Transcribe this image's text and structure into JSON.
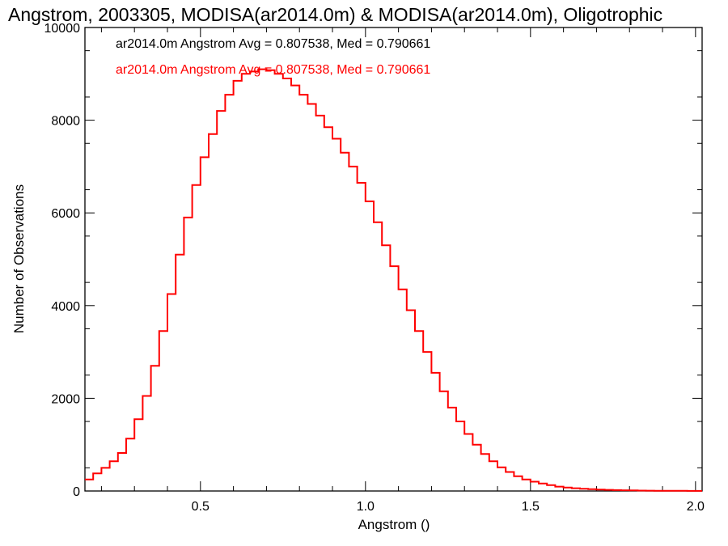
{
  "chart_data": {
    "type": "step",
    "title": "Angstrom, 2003305, MODISA(ar2014.0m) & MODISA(ar2014.0m), Oligotrophic",
    "xlabel": "Angstrom ()",
    "ylabel": "Number of Observations",
    "xlim": [
      0.15,
      2.02
    ],
    "ylim": [
      0,
      10000
    ],
    "x_ticks": [
      {
        "value": 0.5,
        "label": "0.5"
      },
      {
        "value": 1.0,
        "label": "1.0"
      },
      {
        "value": 1.5,
        "label": "1.5"
      },
      {
        "value": 2.0,
        "label": "2.0"
      }
    ],
    "y_ticks": [
      {
        "value": 0,
        "label": "0"
      },
      {
        "value": 2000,
        "label": "2000"
      },
      {
        "value": 4000,
        "label": "4000"
      },
      {
        "value": 6000,
        "label": "6000"
      },
      {
        "value": 8000,
        "label": "8000"
      },
      {
        "value": 10000,
        "label": "10000"
      }
    ],
    "legend_placement": "top-left",
    "legend": [
      {
        "text": "ar2014.0m Angstrom Avg = 0.807538, Med = 0.790661",
        "color": "#000000"
      },
      {
        "text": "ar2014.0m Angstrom Avg = 0.807538, Med = 0.790661",
        "color": "#ff0000"
      }
    ],
    "series": [
      {
        "color": "#ff0000",
        "bin_width": 0.025,
        "x": [
          0.15,
          0.175,
          0.2,
          0.225,
          0.25,
          0.275,
          0.3,
          0.325,
          0.35,
          0.375,
          0.4,
          0.425,
          0.45,
          0.475,
          0.5,
          0.525,
          0.55,
          0.575,
          0.6,
          0.625,
          0.65,
          0.675,
          0.7,
          0.725,
          0.75,
          0.775,
          0.8,
          0.825,
          0.85,
          0.875,
          0.9,
          0.925,
          0.95,
          0.975,
          1.0,
          1.025,
          1.05,
          1.075,
          1.1,
          1.125,
          1.15,
          1.175,
          1.2,
          1.225,
          1.25,
          1.275,
          1.3,
          1.325,
          1.35,
          1.375,
          1.4,
          1.425,
          1.45,
          1.475,
          1.5,
          1.525,
          1.55,
          1.575,
          1.6,
          1.625,
          1.65,
          1.675,
          1.7,
          1.725,
          1.75,
          1.775,
          1.8,
          1.825,
          1.85,
          1.875,
          1.9,
          1.925,
          1.95,
          1.975,
          2.0
        ],
        "y": [
          250,
          380,
          500,
          640,
          820,
          1130,
          1550,
          2050,
          2700,
          3450,
          4250,
          5100,
          5900,
          6600,
          7200,
          7700,
          8200,
          8550,
          8850,
          9000,
          9050,
          9100,
          9080,
          9000,
          8900,
          8750,
          8550,
          8350,
          8100,
          7850,
          7600,
          7300,
          7000,
          6650,
          6250,
          5800,
          5300,
          4850,
          4350,
          3900,
          3450,
          3000,
          2550,
          2150,
          1800,
          1500,
          1230,
          1000,
          800,
          640,
          510,
          410,
          320,
          250,
          200,
          160,
          125,
          95,
          75,
          60,
          48,
          38,
          30,
          24,
          19,
          15,
          12,
          9,
          7,
          6,
          5,
          4,
          3,
          2,
          2
        ]
      }
    ]
  }
}
